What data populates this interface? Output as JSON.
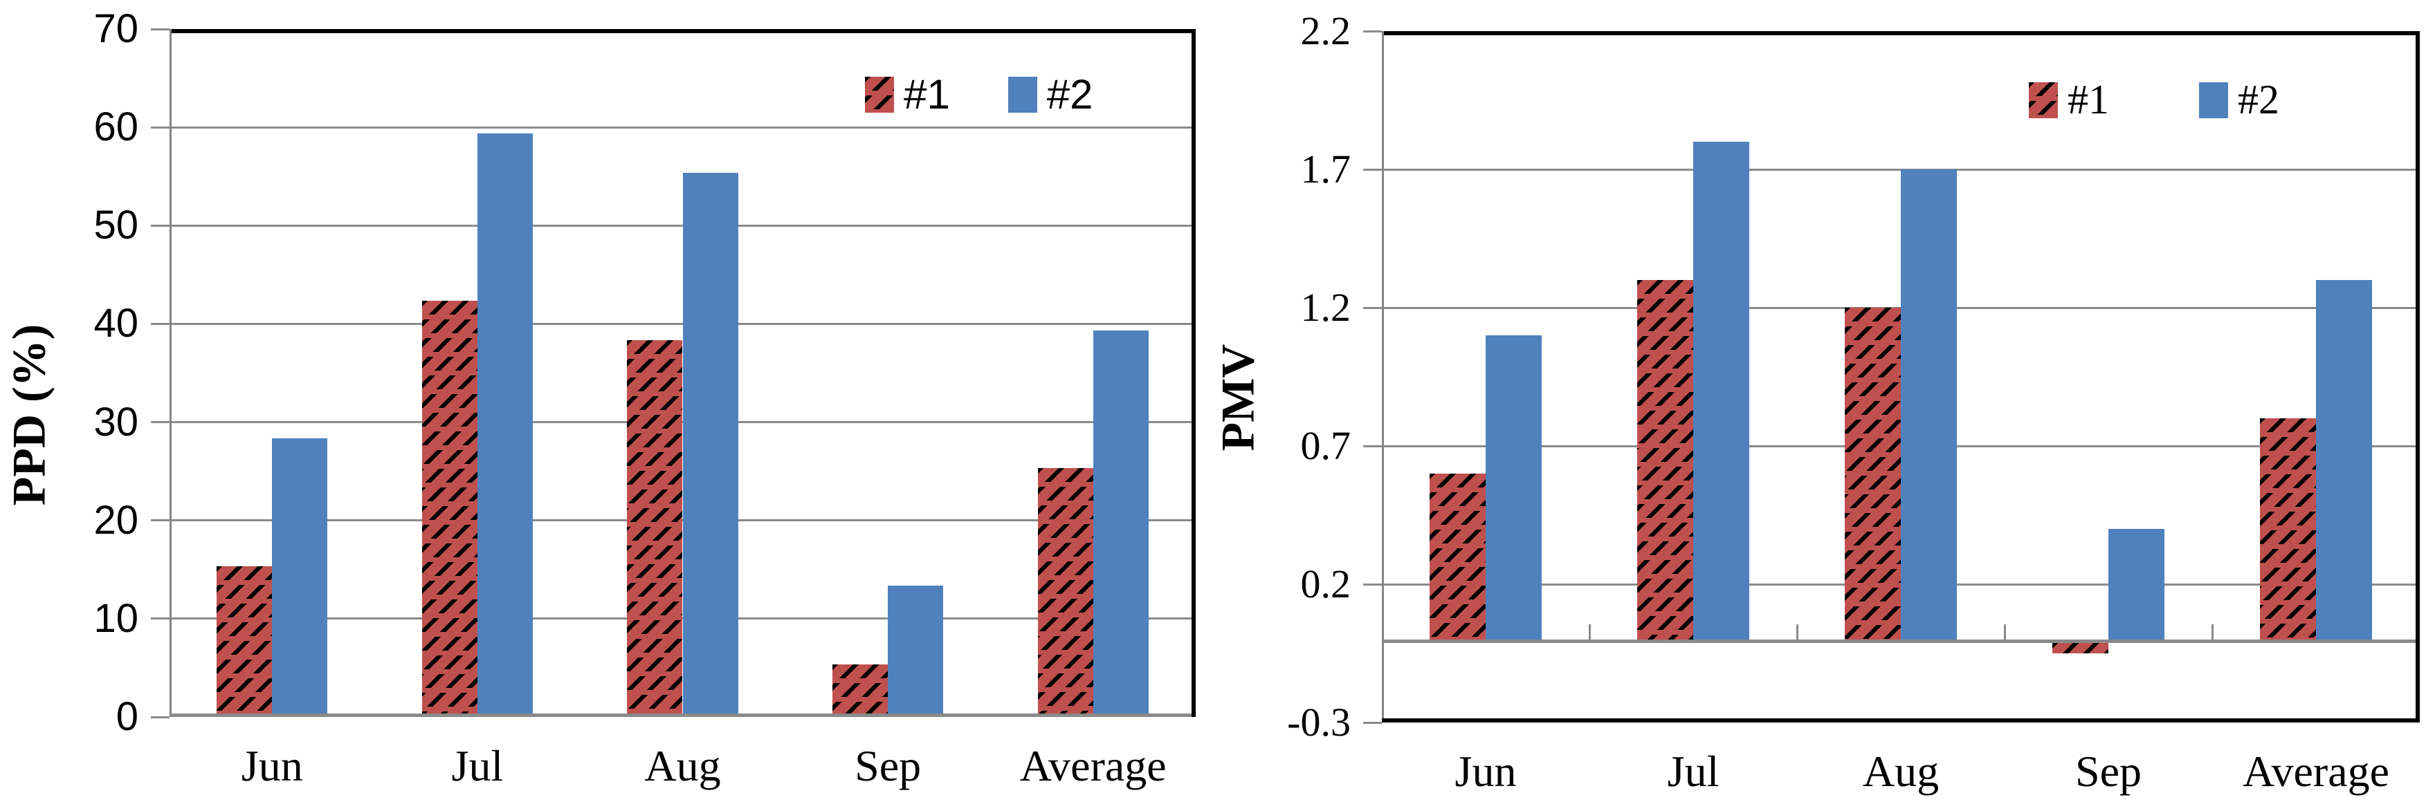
{
  "chart_data": [
    {
      "type": "bar",
      "title": "",
      "ylabel": "PPD (%)",
      "xlabel": "",
      "categories": [
        "Jun",
        "Jul",
        "Aug",
        "Sep",
        "Average"
      ],
      "series": [
        {
          "name": "#1",
          "values": [
            15,
            42,
            38,
            5,
            25
          ],
          "color": "#C0504D",
          "hatch": true
        },
        {
          "name": "#2",
          "values": [
            28,
            59,
            55,
            13,
            39
          ],
          "color": "#4F81BD",
          "hatch": false
        }
      ],
      "ylim": [
        0,
        70
      ],
      "yticks": [
        "0",
        "10",
        "20",
        "30",
        "40",
        "50",
        "60",
        "70"
      ],
      "grid": true,
      "legend_position": "top-right-inside",
      "category_boundary_ticks": false,
      "gridline_color": "#8a8a8a",
      "border_color": "#000000"
    },
    {
      "type": "bar",
      "title": "",
      "ylabel": "PMV",
      "xlabel": "",
      "categories": [
        "Jun",
        "Jul",
        "Aug",
        "Sep",
        "Average"
      ],
      "series": [
        {
          "name": "#1",
          "values": [
            0.6,
            1.3,
            1.2,
            -0.05,
            0.8
          ],
          "color": "#C0504D",
          "hatch": true
        },
        {
          "name": "#2",
          "values": [
            1.1,
            1.8,
            1.7,
            0.4,
            1.3
          ],
          "color": "#4F81BD",
          "hatch": false
        }
      ],
      "ylim": [
        -0.3,
        2.2
      ],
      "yticks": [
        "-0.3",
        "0.2",
        "0.7",
        "1.2",
        "1.7",
        "2.2"
      ],
      "grid": true,
      "legend_position": "top-right-inside",
      "category_boundary_ticks": true,
      "gridline_color": "#8a8a8a",
      "border_color": "#000000"
    }
  ]
}
